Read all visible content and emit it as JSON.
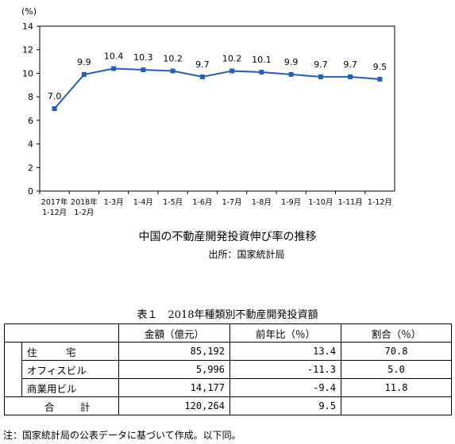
{
  "chart_data": {
    "type": "line",
    "y_unit": "(%)",
    "ylim": [
      0,
      14
    ],
    "yticks": [
      0,
      2,
      4,
      6,
      8,
      10,
      12,
      14
    ],
    "categories": [
      [
        "2017年",
        "1-12月"
      ],
      [
        "2018年",
        "1-2月"
      ],
      [
        "1-3月"
      ],
      [
        "1-4月"
      ],
      [
        "1-5月"
      ],
      [
        "1-6月"
      ],
      [
        "1-7月"
      ],
      [
        "1-8月"
      ],
      [
        "1-9月"
      ],
      [
        "1-10月"
      ],
      [
        "1-11月"
      ],
      [
        "1-12月"
      ]
    ],
    "values": [
      7.0,
      9.9,
      10.4,
      10.3,
      10.2,
      9.7,
      10.2,
      10.1,
      9.9,
      9.7,
      9.7,
      9.5
    ],
    "labels": [
      "7.0",
      "9.9",
      "10.4",
      "10.3",
      "10.2",
      "9.7",
      "10.2",
      "10.1",
      "9.9",
      "9.7",
      "9.7",
      "9.5"
    ],
    "grid": false,
    "color": "#1f5fbf"
  },
  "chart_title": "中国の不動産開発投資伸び率の推移",
  "chart_source": "出所：国家統計局",
  "table": {
    "title": "表１　2018年種類別不動産開発投資額",
    "headers": [
      "",
      "",
      "金額（億元）",
      "前年比（％）",
      "割合（％）"
    ],
    "rows": [
      {
        "label": "住　宅",
        "amount": "85,192",
        "yoy": "13.4",
        "share": "70.8"
      },
      {
        "label": "オフィスビル",
        "amount": "5,996",
        "yoy": "-11.3",
        "share": "5.0"
      },
      {
        "label": "商業用ビル",
        "amount": "14,177",
        "yoy": "-9.4",
        "share": "11.8"
      }
    ],
    "total": {
      "label": "合　計",
      "amount": "120,264",
      "yoy": "9.5",
      "share": ""
    }
  },
  "note": "注：国家統計局の公表データに基づいて作成。以下同。"
}
